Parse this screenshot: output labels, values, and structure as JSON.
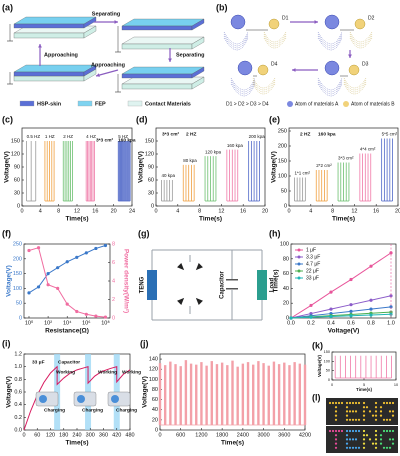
{
  "chart_data": [
    {
      "panel": "(c)",
      "type": "spikes",
      "xlabel": "Time(s)",
      "ylabel": "Voltage(V)",
      "xlim": [
        0,
        24
      ],
      "xticks": [
        0,
        4,
        8,
        12,
        16,
        20,
        24
      ],
      "ylim": [
        0,
        180
      ],
      "yticks": [
        0,
        30,
        60,
        90,
        120,
        150
      ],
      "annotations": [
        "3*3 cm²",
        "160 kpa"
      ],
      "series": [
        {
          "name": "0.5 HZ",
          "color": "#9a9a9a",
          "x": [
            1,
            2,
            3
          ],
          "values": [
            150,
            150,
            150
          ]
        },
        {
          "name": "1 HZ",
          "color": "#f0a040",
          "x": [
            5,
            5.5,
            6,
            6.5,
            7
          ],
          "values": [
            150,
            150,
            150,
            150,
            150
          ]
        },
        {
          "name": "2 HZ",
          "color": "#6cc070",
          "x": [
            9,
            9.4,
            9.8,
            10.2,
            10.6,
            11
          ],
          "values": [
            150,
            150,
            150,
            150,
            150,
            150
          ]
        },
        {
          "name": "4 HZ",
          "color": "#f07aa8",
          "x": [
            14,
            14.3,
            14.6,
            14.9,
            15.2,
            15.5,
            15.8
          ],
          "values": [
            150,
            150,
            150,
            150,
            150,
            150,
            150
          ]
        },
        {
          "name": "5 HZ",
          "color": "#5068c8",
          "x": [
            21,
            21.2,
            21.4,
            21.6,
            21.8,
            22,
            22.2,
            22.4,
            22.6,
            22.8,
            23,
            23.2,
            23.4,
            23.6
          ],
          "values": [
            150,
            150,
            150,
            150,
            150,
            150,
            150,
            150,
            150,
            150,
            150,
            150,
            150,
            150
          ]
        }
      ]
    },
    {
      "panel": "(d)",
      "type": "spikes",
      "xlabel": "Time(s)",
      "ylabel": "Voltage(V)",
      "xlim": [
        0,
        20
      ],
      "xticks": [
        0,
        4,
        8,
        12,
        16,
        20
      ],
      "ylim": [
        0,
        180
      ],
      "yticks": [
        0,
        30,
        60,
        90,
        120,
        150
      ],
      "annotations": [
        "3*3 cm²",
        "2 HZ"
      ],
      "series": [
        {
          "name": "40 kpa",
          "color": "#9a9a9a",
          "x": [
            1,
            1.5,
            2,
            2.5,
            3
          ],
          "values": [
            60,
            60,
            60,
            60,
            60
          ]
        },
        {
          "name": "80 kpa",
          "color": "#f0a040",
          "x": [
            5,
            5.5,
            6,
            6.5,
            7
          ],
          "values": [
            95,
            95,
            95,
            95,
            95
          ]
        },
        {
          "name": "120 kpa",
          "color": "#6cc070",
          "x": [
            9,
            9.5,
            10,
            10.5,
            11
          ],
          "values": [
            115,
            115,
            115,
            115,
            115
          ]
        },
        {
          "name": "160 kpa",
          "color": "#f07aa8",
          "x": [
            13,
            13.5,
            14,
            14.5,
            15
          ],
          "values": [
            130,
            130,
            130,
            130,
            130
          ]
        },
        {
          "name": "200 kpa",
          "color": "#5068c8",
          "x": [
            17,
            17.5,
            18,
            18.5,
            19
          ],
          "values": [
            150,
            150,
            150,
            150,
            150
          ]
        }
      ]
    },
    {
      "panel": "(e)",
      "type": "spikes",
      "xlabel": "Time(s)",
      "ylabel": "Voltage(V)",
      "xlim": [
        0,
        20
      ],
      "xticks": [
        0,
        4,
        8,
        12,
        16,
        20
      ],
      "ylim": [
        0,
        260
      ],
      "yticks": [
        0,
        50,
        100,
        150,
        200,
        250
      ],
      "annotations": [
        "2 HZ",
        "160 kpa"
      ],
      "series": [
        {
          "name": "1*1 cm²",
          "color": "#9a9a9a",
          "x": [
            1,
            1.5,
            2,
            2.5,
            3
          ],
          "values": [
            95,
            95,
            95,
            95,
            95
          ]
        },
        {
          "name": "2*2 cm²",
          "color": "#f0a040",
          "x": [
            5,
            5.5,
            6,
            6.5,
            7
          ],
          "values": [
            120,
            120,
            120,
            120,
            120
          ]
        },
        {
          "name": "3*3 cm²",
          "color": "#6cc070",
          "x": [
            9,
            9.5,
            10,
            10.5,
            11
          ],
          "values": [
            145,
            145,
            145,
            145,
            145
          ]
        },
        {
          "name": "4*4 cm²",
          "color": "#f07aa8",
          "x": [
            13,
            13.5,
            14,
            14.5,
            15
          ],
          "values": [
            175,
            175,
            175,
            175,
            175
          ]
        },
        {
          "name": "5*5 cm²",
          "color": "#5068c8",
          "x": [
            17,
            17.5,
            18,
            18.5,
            19
          ],
          "values": [
            225,
            225,
            225,
            225,
            225
          ]
        }
      ]
    },
    {
      "panel": "(f)",
      "type": "line",
      "markers": true,
      "xlog": true,
      "xlabel": "Resistance(Ω)",
      "ylabel": "Voltage(V)",
      "y2label": "Power density(W/m²)",
      "x": [
        1,
        10,
        100,
        1000,
        10000,
        100000,
        1000000,
        10000000,
        100000000
      ],
      "xlim": [
        0.3,
        300000000
      ],
      "xticks": [
        {
          "value": 1,
          "label": "10⁰"
        },
        {
          "value": 100,
          "label": "10²"
        },
        {
          "value": 10000,
          "label": "10⁴"
        },
        {
          "value": 1000000,
          "label": "10⁶"
        },
        {
          "value": 100000000,
          "label": "10⁸"
        }
      ],
      "ylim": [
        0,
        250
      ],
      "yticks": [
        0,
        50,
        100,
        150,
        200,
        250
      ],
      "y2lim": [
        0,
        8
      ],
      "y2ticks": [
        0,
        2,
        4,
        6,
        8
      ],
      "series": [
        {
          "color": "#3a78c9",
          "values": [
            85,
            105,
            150,
            170,
            190,
            205,
            220,
            235,
            245
          ]
        },
        {
          "color": "#f06ca0",
          "axis": "y2",
          "values": [
            7.3,
            7.6,
            3.6,
            3.2,
            1.5,
            0.7,
            0.4,
            0.2,
            0.1
          ]
        }
      ]
    },
    {
      "panel": "(h)",
      "type": "line",
      "markers": true,
      "legend": "upper left",
      "xlabel": "Voltage(V)",
      "ylabel": "Time(s)",
      "x": [
        0,
        0.2,
        0.4,
        0.6,
        0.8,
        1.0
      ],
      "xlim": [
        0,
        1.05
      ],
      "xticks": [
        {
          "value": 0,
          "label": "0.0"
        },
        0.2,
        0.4,
        0.6,
        0.8,
        {
          "value": 1,
          "label": "1.0"
        }
      ],
      "ylim": [
        0,
        100
      ],
      "yticks": [
        0,
        20,
        40,
        60,
        80,
        100
      ],
      "series": [
        {
          "name": "1 μF",
          "color": "#e8559a",
          "values": [
            0,
            17,
            35,
            52,
            70,
            88
          ]
        },
        {
          "name": "3.3 μF",
          "color": "#8b5cc9",
          "values": [
            0,
            6,
            12,
            18,
            24,
            30
          ]
        },
        {
          "name": "4.7 μF",
          "color": "#3a78c9",
          "values": [
            0,
            3,
            6,
            9,
            12,
            15
          ]
        },
        {
          "name": "22 μF",
          "color": "#4caf50",
          "values": [
            0,
            1.6,
            3.2,
            4.8,
            6.4,
            8
          ]
        },
        {
          "name": "33 μF",
          "color": "#1fb5b5",
          "values": [
            0,
            1,
            2,
            3,
            4,
            5
          ]
        }
      ]
    },
    {
      "panel": "(i)",
      "type": "line",
      "xlabel": "Time(s)",
      "ylabel": "Voltage(V)",
      "xlim": [
        0,
        480
      ],
      "xticks": [
        0,
        60,
        120,
        180,
        240,
        300,
        360,
        420,
        480
      ],
      "ylim": [
        0,
        1.2
      ],
      "yticks": [
        {
          "value": 0,
          "label": "0.0"
        },
        0.2,
        0.4,
        0.6,
        0.8,
        {
          "value": 1,
          "label": "1.0"
        },
        1.2
      ],
      "bands": [
        150,
        290,
        420
      ],
      "annotations": [
        "33 μF",
        "Capacitor",
        "Working",
        "Working",
        "Working",
        "Charging",
        "Charging",
        "Charging"
      ],
      "x": [
        0,
        30,
        60,
        90,
        120,
        150,
        150,
        180,
        210,
        240,
        270,
        290,
        290,
        320,
        350,
        390,
        420,
        420,
        450,
        480
      ],
      "series": [
        {
          "color": "#d81b60",
          "values": [
            0,
            0.3,
            0.55,
            0.75,
            0.9,
            1.0,
            0.72,
            0.82,
            0.9,
            0.95,
            0.98,
            1.0,
            0.74,
            0.85,
            0.92,
            0.97,
            1.0,
            0.76,
            0.88,
            0.95
          ]
        }
      ]
    },
    {
      "panel": "(j)",
      "type": "spikes",
      "xlabel": "Time(s)",
      "ylabel": "Voltage(V)",
      "xlim": [
        0,
        4200
      ],
      "xticks": [
        0,
        600,
        1200,
        1800,
        2400,
        3000,
        3600,
        4200
      ],
      "ylim": [
        0,
        150
      ],
      "yticks": [
        0,
        20,
        40,
        60,
        80,
        100,
        120,
        140
      ],
      "series": [
        {
          "color": "#f3a0a8",
          "x": [
            0,
            150,
            300,
            450,
            600,
            750,
            900,
            1050,
            1200,
            1350,
            1500,
            1650,
            1800,
            1950,
            2100,
            2250,
            2400,
            2550,
            2700,
            2850,
            3000,
            3150,
            3300,
            3450,
            3600,
            3750,
            3900,
            4050,
            4200
          ],
          "values": [
            132,
            128,
            135,
            130,
            126,
            138,
            131,
            129,
            134,
            127,
            136,
            130,
            133,
            128,
            137,
            125,
            131,
            134,
            129,
            136,
            132,
            127,
            135,
            130,
            133,
            128,
            134,
            131,
            129
          ]
        }
      ]
    },
    {
      "panel": "(k)",
      "type": "spikes",
      "xlabel": "Time(s)",
      "ylabel": "Voltage(V)",
      "xlim": [
        0,
        10
      ],
      "xticks": [
        0,
        5,
        10
      ],
      "ylim": [
        0,
        150
      ],
      "yticks": [
        0,
        50,
        100,
        150
      ],
      "series": [
        {
          "color": "#f07aa8",
          "x": [
            0.5,
            1.3,
            2.1,
            2.9,
            3.7,
            4.5,
            5.3,
            6.1,
            6.9,
            7.7,
            8.5,
            9.3
          ],
          "values": [
            130,
            130,
            130,
            130,
            130,
            130,
            130,
            130,
            130,
            130,
            130,
            130
          ]
        }
      ]
    }
  ],
  "diagram_a": {
    "label": "(a)",
    "arrows": [
      "Separating",
      "Separating",
      "Approaching",
      "Approaching"
    ],
    "legend": [
      "HSP-skin",
      "FEP",
      "Contact Materials"
    ]
  },
  "diagram_b": {
    "label": "(b)",
    "distances": [
      "D1",
      "D2",
      "D3",
      "D4"
    ],
    "relation": "D1 > D2 > D3 > D4",
    "legend": [
      "Atom of materials A",
      "Atom of materials B"
    ]
  },
  "diagram_g": {
    "label": "(g)",
    "parts": [
      "TENG",
      "Capacitor",
      "Load"
    ]
  },
  "diagram_l": {
    "label": "(l)"
  }
}
